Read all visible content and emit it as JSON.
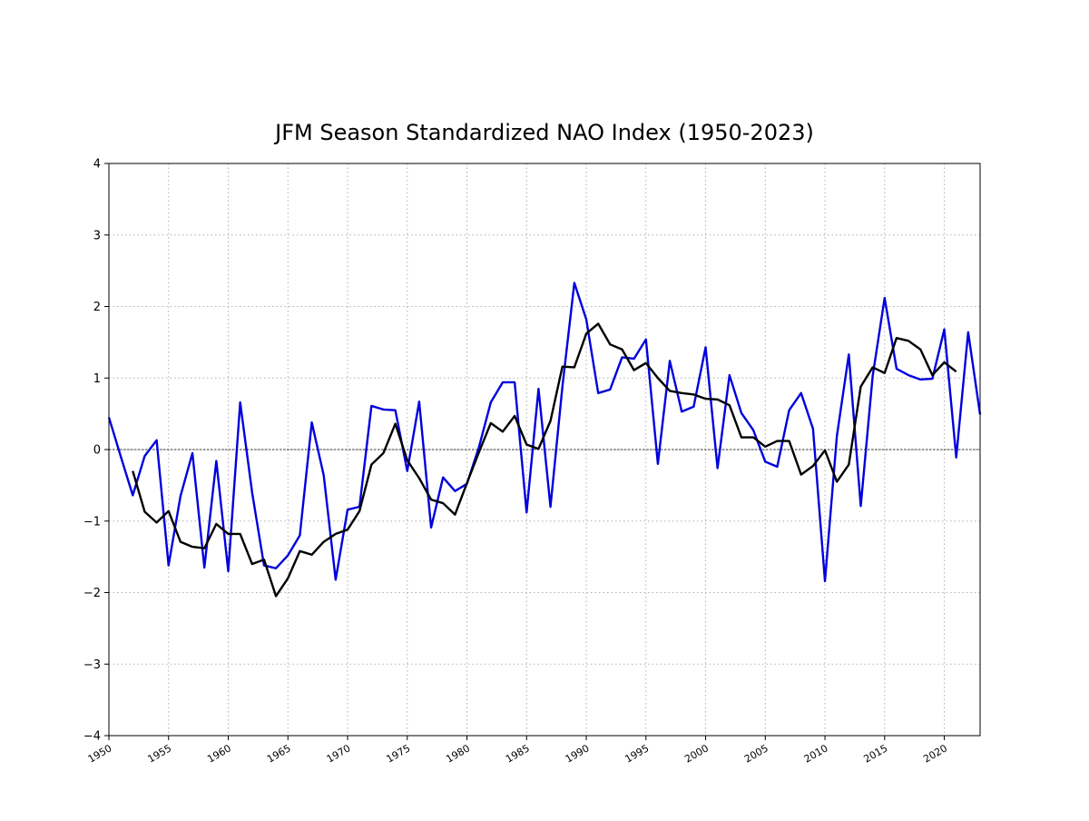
{
  "chart_data": {
    "type": "line",
    "title": "JFM Season Standardized NAO Index (1950-2023)",
    "xlabel": "",
    "ylabel": "",
    "xlim": [
      1950,
      2023
    ],
    "ylim": [
      -4,
      4
    ],
    "grid": true,
    "reference_line": {
      "y": 0,
      "style": "dashed",
      "color": "#000000"
    },
    "xticks": [
      1950,
      1955,
      1960,
      1965,
      1970,
      1975,
      1980,
      1985,
      1990,
      1995,
      2000,
      2005,
      2010,
      2015,
      2020
    ],
    "yticks": [
      -4,
      -3,
      -2,
      -1,
      0,
      1,
      2,
      3,
      4
    ],
    "ytick_labels": [
      "−4",
      "−3",
      "−2",
      "−1",
      "0",
      "1",
      "2",
      "3",
      "4"
    ],
    "series": [
      {
        "color": "#0000dd",
        "x": [
          1950,
          1951,
          1952,
          1953,
          1954,
          1955,
          1956,
          1957,
          1958,
          1959,
          1960,
          1961,
          1962,
          1963,
          1964,
          1965,
          1966,
          1967,
          1968,
          1969,
          1970,
          1971,
          1972,
          1973,
          1974,
          1975,
          1976,
          1977,
          1978,
          1979,
          1980,
          1981,
          1982,
          1983,
          1984,
          1985,
          1986,
          1987,
          1988,
          1989,
          1990,
          1991,
          1992,
          1993,
          1994,
          1995,
          1996,
          1997,
          1998,
          1999,
          2000,
          2001,
          2002,
          2003,
          2004,
          2005,
          2006,
          2007,
          2008,
          2009,
          2010,
          2011,
          2012,
          2013,
          2014,
          2015,
          2016,
          2017,
          2018,
          2019,
          2020,
          2021,
          2022,
          2023
        ],
        "values": [
          0.45,
          -0.1,
          -0.64,
          -0.09,
          0.13,
          -1.62,
          -0.65,
          -0.05,
          -1.65,
          -0.16,
          -1.7,
          0.66,
          -0.6,
          -1.62,
          -1.66,
          -1.48,
          -1.2,
          0.38,
          -0.36,
          -1.82,
          -0.84,
          -0.8,
          0.61,
          0.56,
          0.55,
          -0.3,
          0.67,
          -1.09,
          -0.39,
          -0.58,
          -0.48,
          0.03,
          0.66,
          0.94,
          0.94,
          -0.88,
          0.85,
          -0.8,
          0.88,
          2.33,
          1.82,
          0.79,
          0.84,
          1.29,
          1.27,
          1.54,
          -0.2,
          1.24,
          0.53,
          0.6,
          1.43,
          -0.26,
          1.04,
          0.51,
          0.27,
          -0.17,
          -0.24,
          0.55,
          0.79,
          0.29,
          -1.84,
          0.19,
          1.33,
          -0.79,
          1.03,
          2.12,
          1.13,
          1.04,
          0.98,
          0.99,
          1.68,
          -0.11,
          1.64,
          0.49
        ]
      },
      {
        "color": "#000000",
        "x": [
          1952,
          1953,
          1954,
          1955,
          1956,
          1957,
          1958,
          1959,
          1960,
          1961,
          1962,
          1963,
          1964,
          1965,
          1966,
          1967,
          1968,
          1969,
          1970,
          1971,
          1972,
          1973,
          1974,
          1975,
          1976,
          1977,
          1978,
          1979,
          1980,
          1981,
          1982,
          1983,
          1984,
          1985,
          1986,
          1987,
          1988,
          1989,
          1990,
          1991,
          1992,
          1993,
          1994,
          1995,
          1996,
          1997,
          1998,
          1999,
          2000,
          2001,
          2002,
          2003,
          2004,
          2005,
          2006,
          2007,
          2008,
          2009,
          2010,
          2011,
          2012,
          2013,
          2014,
          2015,
          2016,
          2017,
          2018,
          2019,
          2020,
          2021
        ],
        "values": [
          -0.3,
          -0.87,
          -1.02,
          -0.86,
          -1.29,
          -1.36,
          -1.38,
          -1.04,
          -1.18,
          -1.18,
          -1.6,
          -1.54,
          -2.05,
          -1.8,
          -1.42,
          -1.47,
          -1.29,
          -1.18,
          -1.12,
          -0.86,
          -0.21,
          -0.05,
          0.36,
          -0.15,
          -0.4,
          -0.7,
          -0.75,
          -0.91,
          -0.47,
          -0.04,
          0.37,
          0.25,
          0.47,
          0.07,
          0.01,
          0.4,
          1.16,
          1.15,
          1.62,
          1.76,
          1.47,
          1.4,
          1.11,
          1.21,
          1.0,
          0.82,
          0.79,
          0.77,
          0.71,
          0.7,
          0.62,
          0.17,
          0.17,
          0.04,
          0.12,
          0.12,
          -0.35,
          -0.23,
          -0.01,
          -0.45,
          -0.21,
          0.88,
          1.15,
          1.07,
          1.56,
          1.52,
          1.4,
          1.04,
          1.22,
          1.09
        ]
      }
    ]
  }
}
